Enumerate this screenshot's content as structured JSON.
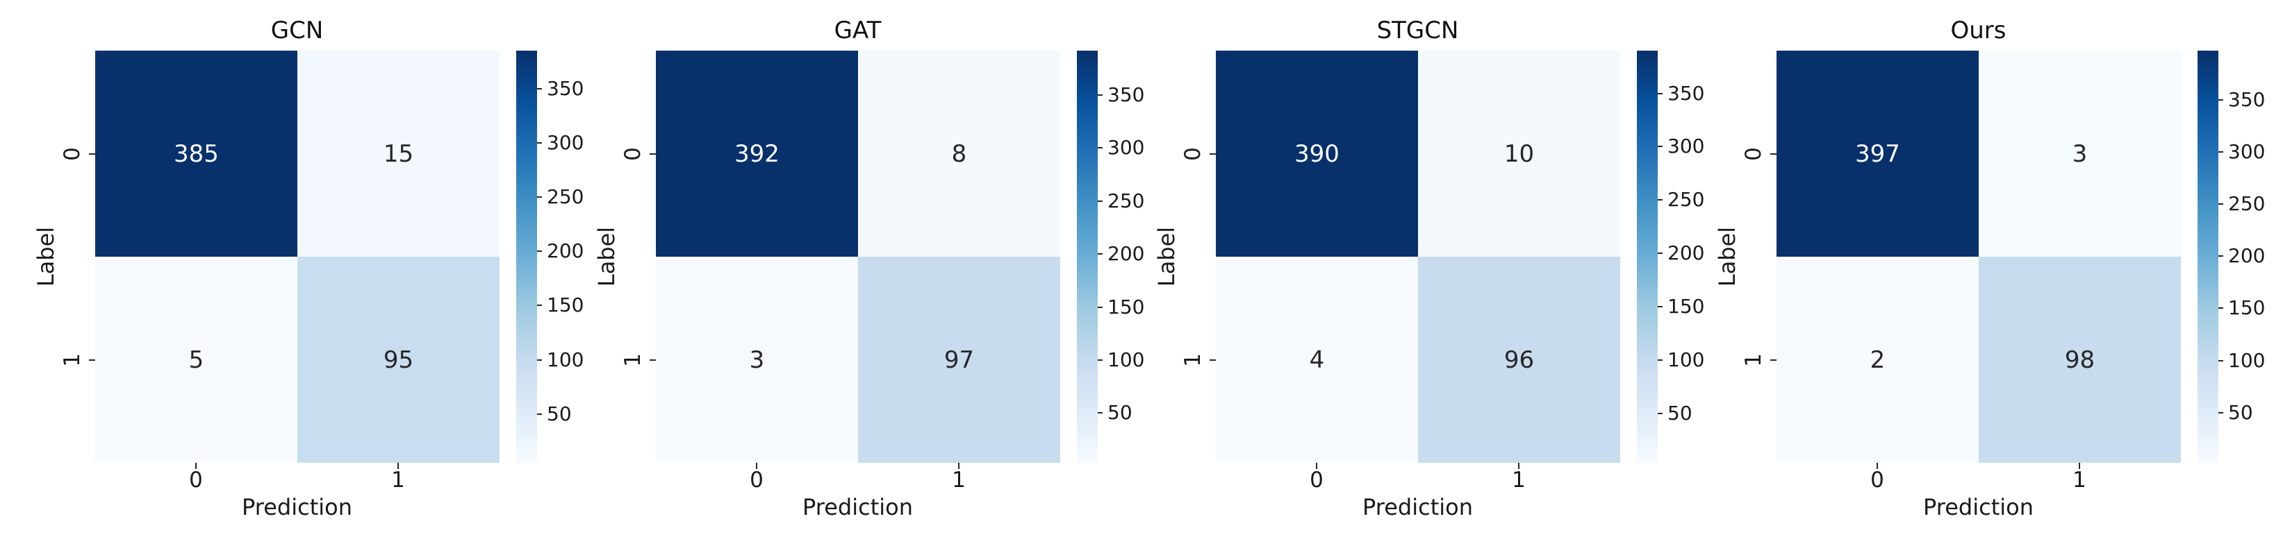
{
  "chart_data": [
    {
      "type": "heatmap",
      "title": "GCN",
      "xlabel": "Prediction",
      "ylabel": "Label",
      "xticklabels": [
        "0",
        "1"
      ],
      "yticklabels": [
        "0",
        "1"
      ],
      "matrix": [
        [
          385,
          15
        ],
        [
          5,
          95
        ]
      ],
      "colormap": "Blues",
      "colorbar_position": "right",
      "colorbar_ticks": [
        50,
        100,
        150,
        200,
        250,
        300,
        350
      ]
    },
    {
      "type": "heatmap",
      "title": "GAT",
      "xlabel": "Prediction",
      "ylabel": "Label",
      "xticklabels": [
        "0",
        "1"
      ],
      "yticklabels": [
        "0",
        "1"
      ],
      "matrix": [
        [
          392,
          8
        ],
        [
          3,
          97
        ]
      ],
      "colormap": "Blues",
      "colorbar_position": "right",
      "colorbar_ticks": [
        50,
        100,
        150,
        200,
        250,
        300,
        350
      ]
    },
    {
      "type": "heatmap",
      "title": "STGCN",
      "xlabel": "Prediction",
      "ylabel": "Label",
      "xticklabels": [
        "0",
        "1"
      ],
      "yticklabels": [
        "0",
        "1"
      ],
      "matrix": [
        [
          390,
          10
        ],
        [
          4,
          96
        ]
      ],
      "colormap": "Blues",
      "colorbar_position": "right",
      "colorbar_ticks": [
        50,
        100,
        150,
        200,
        250,
        300,
        350
      ]
    },
    {
      "type": "heatmap",
      "title": "Ours",
      "xlabel": "Prediction",
      "ylabel": "Label",
      "xticklabels": [
        "0",
        "1"
      ],
      "yticklabels": [
        "0",
        "1"
      ],
      "matrix": [
        [
          397,
          3
        ],
        [
          2,
          98
        ]
      ],
      "colormap": "Blues",
      "colorbar_position": "right",
      "colorbar_ticks": [
        50,
        100,
        150,
        200,
        250,
        300,
        350
      ]
    }
  ],
  "colors": {
    "background": "#ffffff",
    "colormap_anchors": [
      "#f7fbff",
      "#deebf7",
      "#c6dbef",
      "#9ecae1",
      "#6baed6",
      "#4292c6",
      "#2171b5",
      "#08519c",
      "#08306b"
    ],
    "annotation_on_dark": "#ffffff",
    "annotation_on_light": "#262626",
    "tick_text": "#1a1a1a"
  }
}
